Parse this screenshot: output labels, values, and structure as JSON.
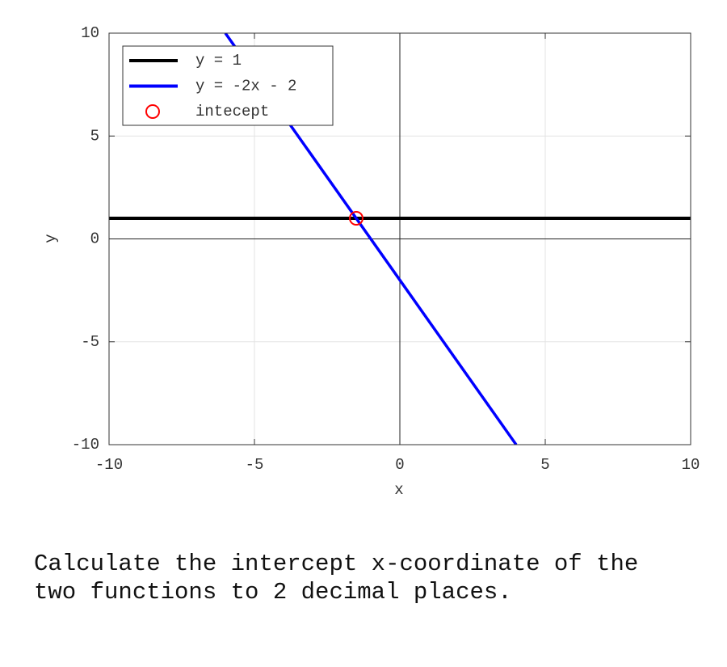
{
  "chart_data": {
    "type": "line",
    "xlabel": "x",
    "ylabel": "y",
    "xlim": [
      -10,
      10
    ],
    "ylim": [
      -10,
      10
    ],
    "xticks": [
      -10,
      -5,
      0,
      5,
      10
    ],
    "yticks": [
      -10,
      -5,
      0,
      5,
      10
    ],
    "grid": true,
    "legend": "upper left",
    "series": [
      {
        "name": "y = 1",
        "color": "#000000",
        "x": [
          -10,
          10
        ],
        "values": [
          1,
          1
        ]
      },
      {
        "name": "y = -2x - 2",
        "color": "#0000ff",
        "x": [
          -6,
          4
        ],
        "values": [
          10,
          -10
        ]
      },
      {
        "name": "intecept",
        "color": "#ff0000",
        "marker": "circle",
        "x": [
          -1.5
        ],
        "values": [
          1
        ]
      }
    ]
  },
  "question": "Calculate the intercept x-coordinate of the two functions to 2 decimal places."
}
